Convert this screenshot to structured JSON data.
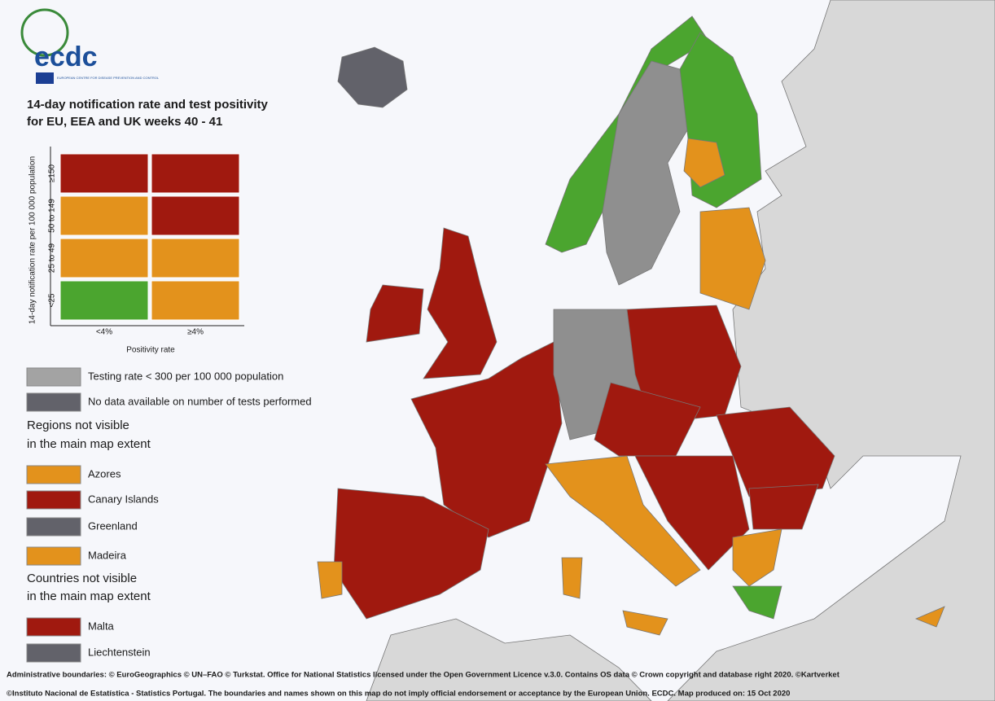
{
  "logo": {
    "name": "ecdc",
    "subtitle": "EUROPEAN CENTRE FOR DISEASE PREVENTION AND CONTROL"
  },
  "title": [
    "14-day notification rate and test positivity",
    "for EU, EEA and UK weeks 40 - 41"
  ],
  "matrix": {
    "y_label": "14-day notification rate per 100 000 population",
    "rows": [
      "≥150",
      "50 to 149",
      "25 to 49",
      "<25"
    ],
    "columns": [
      "<4%",
      "≥4%"
    ],
    "x_label": "Positivity rate",
    "colors": [
      [
        "#a0190f",
        "#a0190f"
      ],
      [
        "#e3921c",
        "#a0190f"
      ],
      [
        "#e3921c",
        "#e3921c"
      ],
      [
        "#4ba52f",
        "#e3921c"
      ]
    ]
  },
  "legend": {
    "items": [
      {
        "label": "Testing rate < 300 per 100 000 population",
        "color": "#a3a3a3"
      },
      {
        "label": "No data available on number of tests performed",
        "color": "#62626a"
      }
    ],
    "regions_heading": [
      "Regions not visible",
      "in the main map extent"
    ],
    "regions": [
      {
        "label": "Azores",
        "color": "#e3921c"
      },
      {
        "label": "Canary Islands",
        "color": "#a0190f"
      },
      {
        "label": "Greenland",
        "color": "#62626a"
      },
      {
        "label": "Madeira",
        "color": "#e3921c"
      }
    ],
    "countries_heading": [
      "Countries not visible",
      "in the main map extent"
    ],
    "countries": [
      {
        "label": "Malta",
        "color": "#a0190f"
      },
      {
        "label": "Liechtenstein",
        "color": "#62626a"
      }
    ]
  },
  "footer": [
    "Administrative boundaries: © EuroGeographics © UN–FAO © Turkstat. Office for National Statistics licensed under the Open Government Licence v.3.0. Contains OS data © Crown copyright and database right 2020. ©Kartverket",
    "©Instituto Nacional de Estatística - Statistics Portugal. The boundaries and names shown on this map do not imply official endorsement or acceptance by the European Union. ECDC. Map produced on: 15 Oct 2020"
  ]
}
